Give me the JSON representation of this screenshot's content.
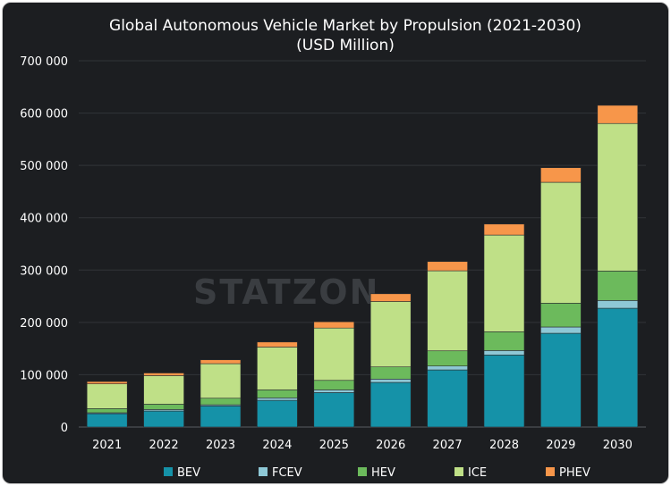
{
  "chart_data": {
    "type": "bar",
    "stacked": true,
    "title": "Global Autonomous Vehicle Market by Propulsion (2021-2030)",
    "subtitle": "(USD Million)",
    "watermark": "STATZON",
    "categories": [
      "2021",
      "2022",
      "2023",
      "2024",
      "2025",
      "2026",
      "2027",
      "2028",
      "2029",
      "2030"
    ],
    "ylim": [
      0,
      700000
    ],
    "yticks": [
      0,
      100000,
      200000,
      300000,
      400000,
      500000,
      600000,
      700000
    ],
    "ytick_labels": [
      "0",
      "100 000",
      "200 000",
      "300 000",
      "400 000",
      "500 000",
      "600 000",
      "700 000"
    ],
    "grid": true,
    "legend_position": "bottom",
    "series": [
      {
        "name": "BEV",
        "color": "#1592a8",
        "values": [
          25600,
          30700,
          40300,
          51100,
          65900,
          85300,
          109200,
          137700,
          179200,
          227000
        ]
      },
      {
        "name": "FCEV",
        "color": "#8ec8d6",
        "values": [
          1700,
          2800,
          2300,
          4600,
          5100,
          6300,
          7400,
          8500,
          12000,
          14800
        ]
      },
      {
        "name": "HEV",
        "color": "#6cba5c",
        "values": [
          8000,
          10200,
          12500,
          15300,
          18200,
          23300,
          29000,
          35800,
          45500,
          56300
        ]
      },
      {
        "name": "ICE",
        "color": "#bfe087",
        "values": [
          47200,
          54500,
          66000,
          81800,
          100000,
          125000,
          153000,
          184900,
          231000,
          282000
        ]
      },
      {
        "name": "PHEV",
        "color": "#f7964a",
        "values": [
          4500,
          5100,
          7400,
          9700,
          12000,
          14800,
          17700,
          21000,
          27900,
          34700
        ]
      }
    ]
  }
}
